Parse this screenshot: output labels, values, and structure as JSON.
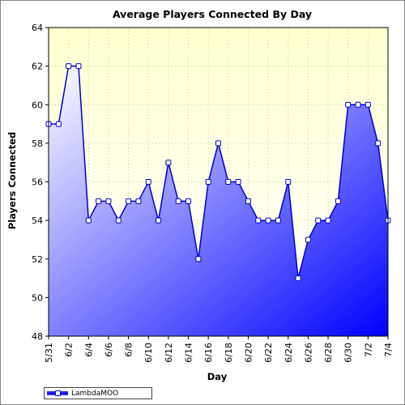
{
  "chart_data": {
    "type": "area",
    "title": "Average Players Connected By Day",
    "xlabel": "Day",
    "ylabel": "Players Connected",
    "ylim": [
      48,
      64
    ],
    "yticks": [
      48,
      50,
      52,
      54,
      56,
      58,
      60,
      62,
      64
    ],
    "grid": true,
    "legend_position": "bottom-left",
    "x": [
      "5/31",
      "6/1",
      "6/2",
      "6/3",
      "6/4",
      "6/5",
      "6/6",
      "6/7",
      "6/8",
      "6/9",
      "6/10",
      "6/11",
      "6/12",
      "6/13",
      "6/14",
      "6/15",
      "6/16",
      "6/17",
      "6/18",
      "6/19",
      "6/20",
      "6/21",
      "6/22",
      "6/23",
      "6/24",
      "6/25",
      "6/26",
      "6/27",
      "6/28",
      "6/29",
      "6/30",
      "7/1",
      "7/2",
      "7/3",
      "7/4"
    ],
    "xtick_labels": [
      "5/31",
      "6/2",
      "6/4",
      "6/6",
      "6/8",
      "6/10",
      "6/12",
      "6/14",
      "6/16",
      "6/18",
      "6/20",
      "6/22",
      "6/24",
      "6/26",
      "6/28",
      "6/30",
      "7/2",
      "7/4"
    ],
    "series": [
      {
        "name": "LambdaMOO",
        "values": [
          59,
          59,
          62,
          62,
          54,
          55,
          55,
          54,
          55,
          55,
          56,
          54,
          57,
          55,
          55,
          52,
          56,
          58,
          56,
          56,
          55,
          54,
          54,
          54,
          56,
          51,
          53,
          54,
          54,
          55,
          60,
          60,
          60,
          58,
          54
        ]
      }
    ],
    "colors": {
      "line": "#0000cc",
      "fill_light": "#ffffff",
      "fill_dark": "#0000ff",
      "plot_bg": "#ffffd8"
    }
  }
}
